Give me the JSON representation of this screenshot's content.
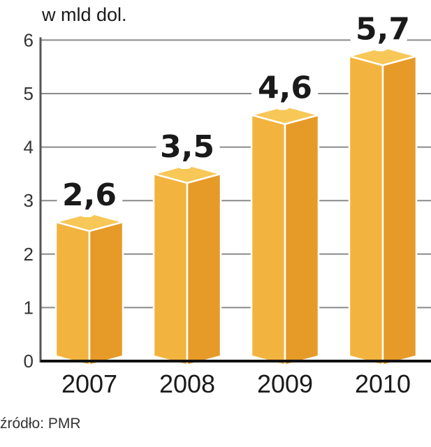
{
  "chart_data": {
    "type": "bar",
    "style": "3d-column",
    "unit_label": "w mld dol.",
    "categories": [
      "2007",
      "2008",
      "2009",
      "2010"
    ],
    "values": [
      2.6,
      3.5,
      4.6,
      5.7
    ],
    "data_labels": [
      "2,6",
      "3,5",
      "4,6",
      "5,7"
    ],
    "ylim": [
      0,
      6
    ],
    "yticks": [
      "0",
      "1",
      "2",
      "3",
      "4",
      "5",
      "6"
    ],
    "grid": true,
    "source": "źródło: PMR",
    "colors": {
      "front": "#f2b43f",
      "side": "#e69a28",
      "top": "#f7c757",
      "axis": "#555555",
      "grid": "#8a8a8a"
    }
  }
}
